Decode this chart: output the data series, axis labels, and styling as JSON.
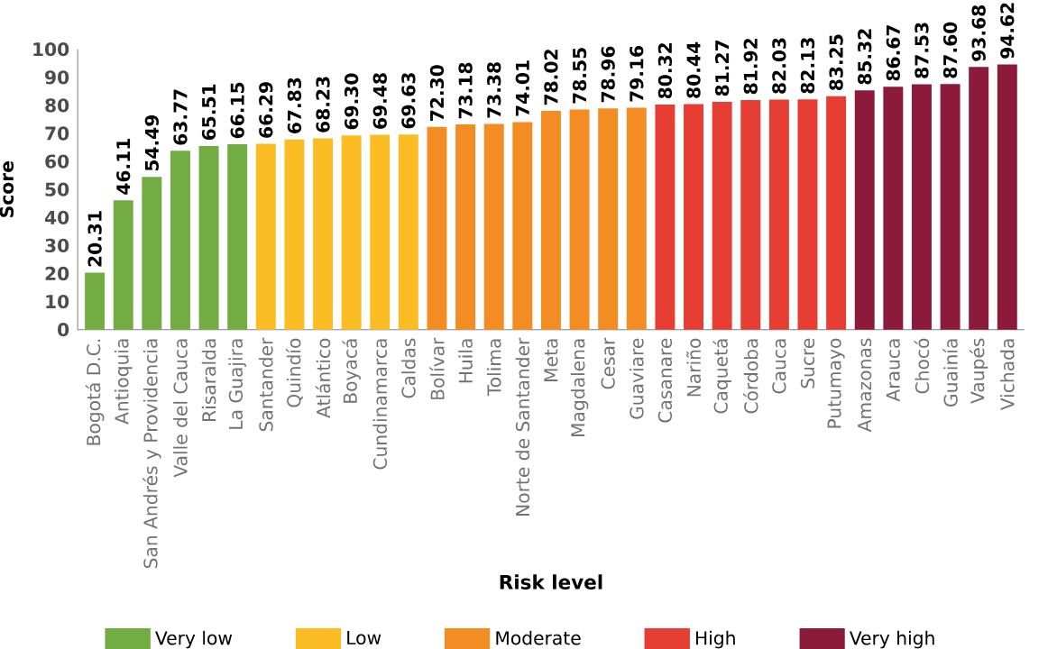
{
  "chart_data": {
    "type": "bar",
    "xlabel": "Risk level",
    "ylabel": "Score",
    "categories": [
      "Bogotá D.C.",
      "Antioquia",
      "San Andrés y Providencia",
      "Valle del Cauca",
      "Risaralda",
      "La Guajira",
      "Santander",
      "Quindío",
      "Atlántico",
      "Boyacá",
      "Cundinamarca",
      "Caldas",
      "Bolívar",
      "Huila",
      "Tolima",
      "Norte de Santander",
      "Meta",
      "Magdalena",
      "Cesar",
      "Guaviare",
      "Casanare",
      "Nariño",
      "Caquetá",
      "Córdoba",
      "Cauca",
      "Sucre",
      "Putumayo",
      "Amazonas",
      "Arauca",
      "Chocó",
      "Guainía",
      "Vaupés",
      "Vichada"
    ],
    "series": [
      {
        "name": "Very low",
        "color": "#72ac43",
        "values": [
          20.31,
          46.11,
          54.49,
          63.77,
          65.51,
          66.15,
          null,
          null,
          null,
          null,
          null,
          null,
          null,
          null,
          null,
          null,
          null,
          null,
          null,
          null,
          null,
          null,
          null,
          null,
          null,
          null,
          null,
          null,
          null,
          null,
          null,
          null,
          null
        ],
        "value_labels": [
          "20.31",
          "46.11",
          "54.49",
          "63.77",
          "65.51",
          "66.15",
          null,
          null,
          null,
          null,
          null,
          null,
          null,
          null,
          null,
          null,
          null,
          null,
          null,
          null,
          null,
          null,
          null,
          null,
          null,
          null,
          null,
          null,
          null,
          null,
          null,
          null,
          null
        ]
      },
      {
        "name": "Low",
        "color": "#fbbd23",
        "values": [
          null,
          null,
          null,
          null,
          null,
          null,
          66.29,
          67.83,
          68.23,
          69.3,
          69.48,
          69.63,
          null,
          null,
          null,
          null,
          null,
          null,
          null,
          null,
          null,
          null,
          null,
          null,
          null,
          null,
          null,
          null,
          null,
          null,
          null,
          null,
          null
        ],
        "value_labels": [
          null,
          null,
          null,
          null,
          null,
          null,
          "66.29",
          "67.83",
          "68.23",
          "69.30",
          "69.48",
          "69.63",
          null,
          null,
          null,
          null,
          null,
          null,
          null,
          null,
          null,
          null,
          null,
          null,
          null,
          null,
          null,
          null,
          null,
          null,
          null,
          null,
          null
        ]
      },
      {
        "name": "Moderate",
        "color": "#f28c23",
        "values": [
          null,
          null,
          null,
          null,
          null,
          null,
          null,
          null,
          null,
          null,
          null,
          null,
          72.3,
          73.18,
          73.38,
          74.01,
          78.02,
          78.55,
          78.96,
          79.16,
          null,
          null,
          null,
          null,
          null,
          null,
          null,
          null,
          null,
          null,
          null,
          null,
          null
        ],
        "value_labels": [
          null,
          null,
          null,
          null,
          null,
          null,
          null,
          null,
          null,
          null,
          null,
          null,
          "72.30",
          "73.18",
          "73.38",
          "74.01",
          "78.02",
          "78.55",
          "78.96",
          "79.16",
          null,
          null,
          null,
          null,
          null,
          null,
          null,
          null,
          null,
          null,
          null,
          null,
          null
        ]
      },
      {
        "name": "High",
        "color": "#e63e33",
        "values": [
          null,
          null,
          null,
          null,
          null,
          null,
          null,
          null,
          null,
          null,
          null,
          null,
          null,
          null,
          null,
          null,
          null,
          null,
          null,
          null,
          80.32,
          80.44,
          81.27,
          81.92,
          82.03,
          82.13,
          83.25,
          null,
          null,
          null,
          null,
          null,
          null
        ],
        "value_labels": [
          null,
          null,
          null,
          null,
          null,
          null,
          null,
          null,
          null,
          null,
          null,
          null,
          null,
          null,
          null,
          null,
          null,
          null,
          null,
          null,
          "80.32",
          "80.44",
          "81.27",
          "81.92",
          "82.03",
          "82.13",
          "83.25",
          null,
          null,
          null,
          null,
          null,
          null
        ]
      },
      {
        "name": "Very high",
        "color": "#8b1a3b",
        "values": [
          null,
          null,
          null,
          null,
          null,
          null,
          null,
          null,
          null,
          null,
          null,
          null,
          null,
          null,
          null,
          null,
          null,
          null,
          null,
          null,
          null,
          null,
          null,
          null,
          null,
          null,
          null,
          85.32,
          86.67,
          87.53,
          87.6,
          93.68,
          94.62
        ],
        "value_labels": [
          null,
          null,
          null,
          null,
          null,
          null,
          null,
          null,
          null,
          null,
          null,
          null,
          null,
          null,
          null,
          null,
          null,
          null,
          null,
          null,
          null,
          null,
          null,
          null,
          null,
          null,
          null,
          "85.32",
          "86.67",
          "87.53",
          "87.60",
          "93.68",
          "94.62"
        ]
      }
    ],
    "ylim": [
      0,
      100
    ],
    "yticks": [
      0,
      10,
      20,
      30,
      40,
      50,
      60,
      70,
      80,
      90,
      100
    ],
    "legend": "bottom"
  }
}
